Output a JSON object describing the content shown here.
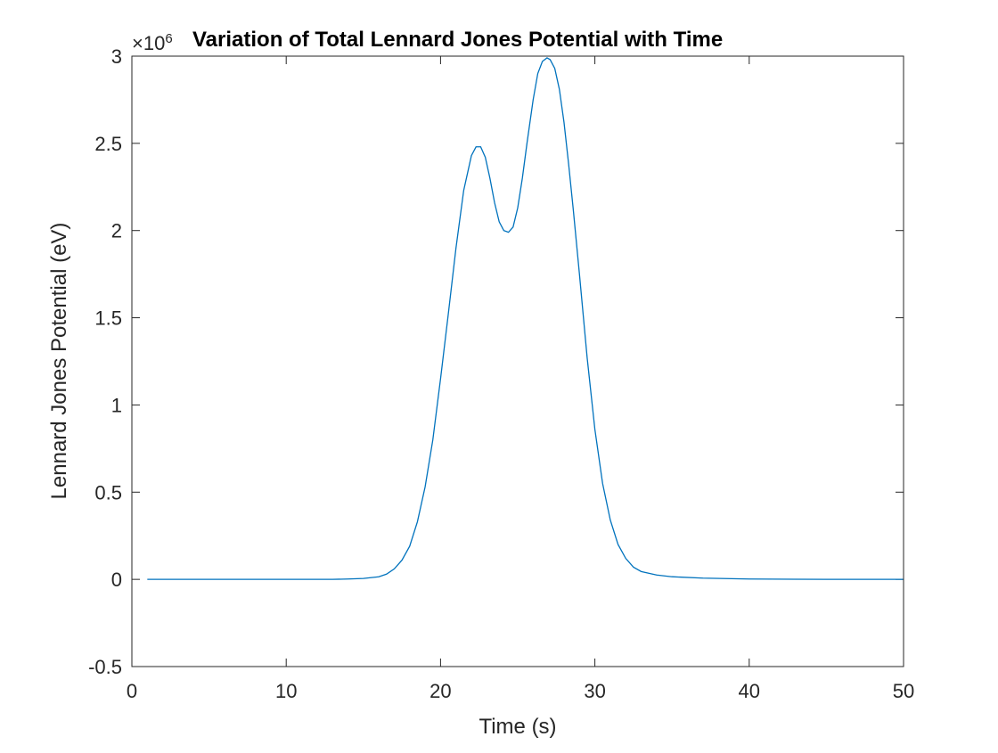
{
  "chart_data": {
    "type": "line",
    "title": "Variation of Total Lennard Jones Potential with Time",
    "xlabel": "Time (s)",
    "ylabel": "Lennard Jones Potential (eV)",
    "exponent": {
      "base": "×10",
      "power": "6"
    },
    "xlim": [
      0,
      50
    ],
    "ylim": [
      -0.5,
      3
    ],
    "xticks": [
      0,
      10,
      20,
      30,
      40,
      50
    ],
    "xtick_labels": [
      "0",
      "10",
      "20",
      "30",
      "40",
      "50"
    ],
    "yticks": [
      -0.5,
      0,
      0.5,
      1,
      1.5,
      2,
      2.5,
      3
    ],
    "ytick_labels": [
      "-0.5",
      "0",
      "0.5",
      "1",
      "1.5",
      "2",
      "2.5",
      "3"
    ],
    "grid": false,
    "box": true,
    "series": [
      {
        "color": "#0072bd",
        "x": [
          1,
          5,
          10,
          13,
          14,
          15,
          16,
          16.5,
          17,
          17.5,
          18,
          18.5,
          19,
          19.5,
          20,
          20.5,
          21,
          21.5,
          22,
          22.3,
          22.6,
          22.9,
          23.2,
          23.5,
          23.8,
          24.1,
          24.4,
          24.7,
          25,
          25.3,
          25.6,
          26,
          26.3,
          26.6,
          26.9,
          27.1,
          27.4,
          27.7,
          28,
          28.3,
          28.6,
          29,
          29.5,
          30,
          30.5,
          31,
          31.5,
          32,
          32.5,
          33,
          34,
          35,
          37,
          40,
          45,
          50
        ],
        "y": [
          0,
          0,
          0,
          0,
          0.002,
          0.005,
          0.015,
          0.03,
          0.06,
          0.11,
          0.19,
          0.33,
          0.53,
          0.8,
          1.15,
          1.52,
          1.9,
          2.23,
          2.43,
          2.48,
          2.48,
          2.42,
          2.3,
          2.16,
          2.05,
          2.0,
          1.99,
          2.02,
          2.13,
          2.3,
          2.5,
          2.75,
          2.9,
          2.97,
          2.99,
          2.98,
          2.93,
          2.81,
          2.62,
          2.38,
          2.12,
          1.75,
          1.27,
          0.86,
          0.55,
          0.34,
          0.2,
          0.12,
          0.07,
          0.045,
          0.025,
          0.015,
          0.007,
          0.002,
          0.0,
          0.0
        ]
      }
    ]
  }
}
